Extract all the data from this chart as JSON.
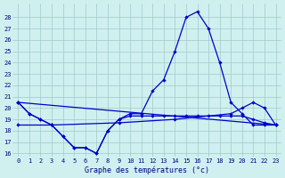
{
  "title": "Graphe des températures (°c)",
  "bg_color": "#d0f0f0",
  "grid_color": "#a0c8c8",
  "line_color": "#0000cc",
  "xlim": [
    -0.5,
    23.5
  ],
  "ylim": [
    15.7,
    29.2
  ],
  "yticks": [
    16,
    17,
    18,
    19,
    20,
    21,
    22,
    23,
    24,
    25,
    26,
    27,
    28
  ],
  "xticks": [
    0,
    1,
    2,
    3,
    4,
    5,
    6,
    7,
    8,
    9,
    10,
    11,
    12,
    13,
    14,
    15,
    16,
    17,
    18,
    19,
    20,
    21,
    22,
    23
  ],
  "series": [
    {
      "x": [
        0,
        1,
        2,
        3,
        4,
        5,
        6,
        7,
        8,
        9,
        10,
        11,
        12,
        13,
        14,
        15,
        16,
        17,
        18,
        19,
        20,
        21,
        22,
        23
      ],
      "y": [
        20.5,
        19.5,
        19.0,
        18.5,
        17.5,
        16.5,
        16.5,
        16.0,
        18.0,
        19.0,
        19.5,
        19.5,
        21.5,
        22.5,
        25.0,
        28.0,
        28.5,
        27.0,
        24.0,
        20.5,
        19.5,
        18.5,
        18.5,
        18.5
      ]
    },
    {
      "x": [
        0,
        3,
        9,
        14,
        19,
        20,
        21,
        22,
        23
      ],
      "y": [
        18.5,
        18.5,
        18.7,
        19.0,
        19.5,
        20.0,
        20.5,
        20.0,
        18.5
      ]
    },
    {
      "x": [
        0,
        1,
        2,
        3,
        4,
        5,
        6,
        7,
        8,
        9,
        10,
        11,
        12,
        13,
        14,
        15,
        16,
        17,
        18,
        19,
        20,
        21,
        22,
        23
      ],
      "y": [
        20.5,
        19.5,
        19.0,
        18.5,
        17.5,
        16.5,
        16.5,
        16.0,
        18.0,
        19.0,
        19.3,
        19.3,
        19.3,
        19.3,
        19.3,
        19.3,
        19.3,
        19.3,
        19.3,
        19.3,
        19.3,
        19.0,
        18.7,
        18.5
      ]
    },
    {
      "x": [
        0,
        23
      ],
      "y": [
        20.5,
        18.5
      ]
    }
  ]
}
